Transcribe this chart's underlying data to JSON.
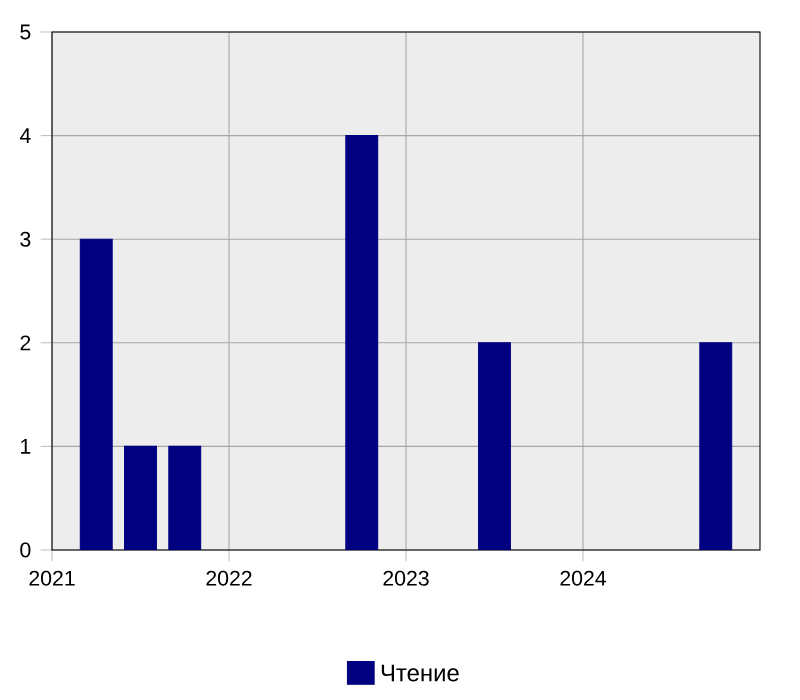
{
  "chart_data": {
    "type": "bar",
    "x": [
      "2021-04",
      "2021-07",
      "2021-10",
      "2022-10",
      "2023-07",
      "2024-10"
    ],
    "series": [
      {
        "name": "Чтение",
        "color": "#000080",
        "values": [
          3,
          1,
          1,
          4,
          2,
          2
        ]
      }
    ],
    "xlim": [
      "2021",
      "2025"
    ],
    "xticks": [
      "2021",
      "2022",
      "2023",
      "2024"
    ],
    "ylim": [
      0,
      5
    ],
    "yticks": [
      0,
      1,
      2,
      3,
      4,
      5
    ],
    "grid": true,
    "legend": "bottom"
  }
}
